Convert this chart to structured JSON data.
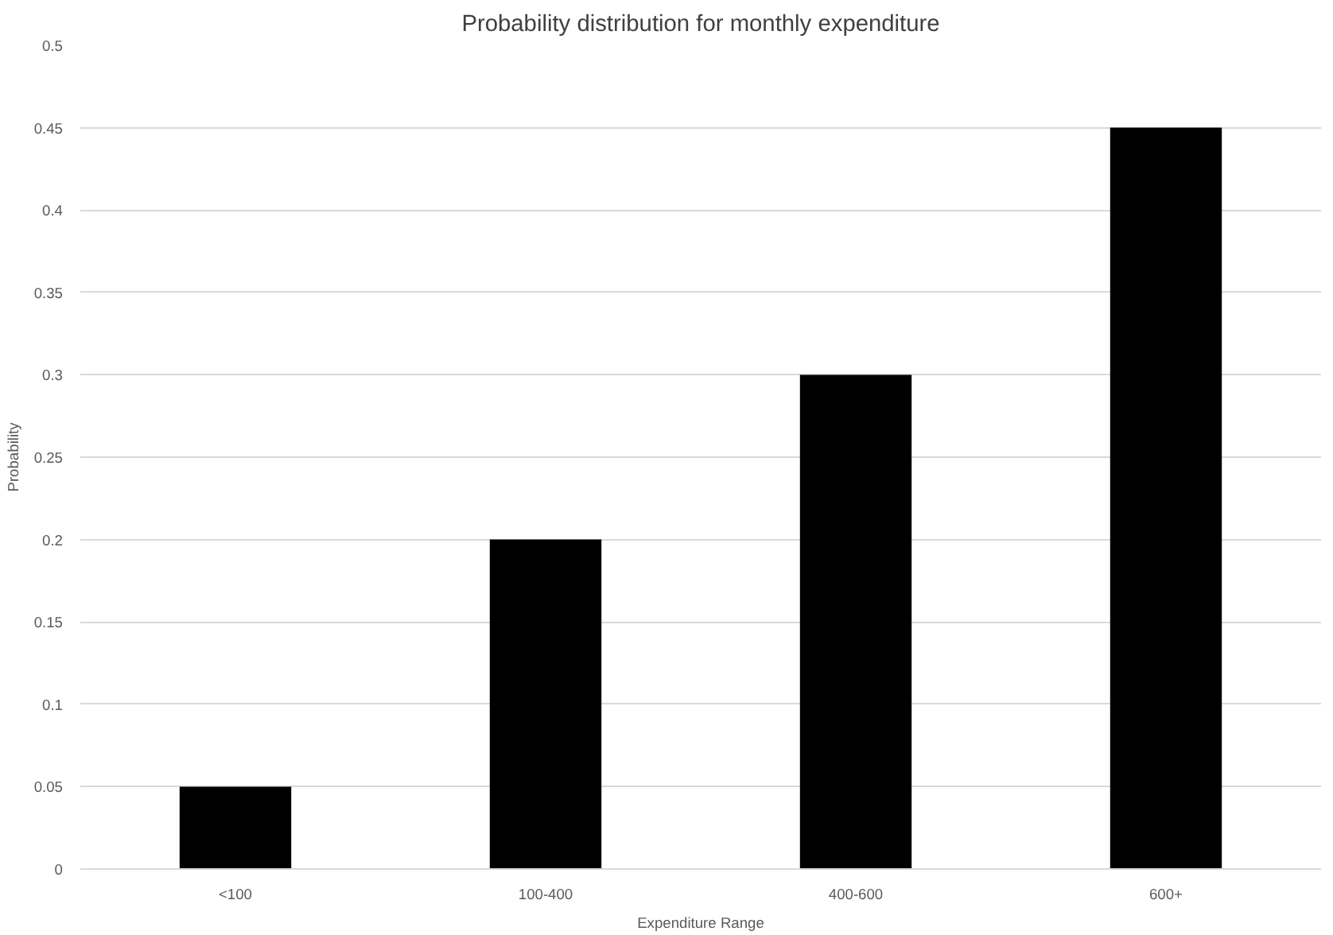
{
  "chart_data": {
    "type": "bar",
    "title": "Probability distribution for monthly expenditure",
    "xlabel": "Expenditure Range",
    "ylabel": "Probability",
    "categories": [
      "<100",
      "100-400",
      "400-600",
      "600+"
    ],
    "values": [
      0.05,
      0.2,
      0.3,
      0.45
    ],
    "color": "#000000",
    "ylim": [
      0,
      0.5
    ],
    "yticks": [
      0,
      0.05,
      0.1,
      0.15,
      0.2,
      0.25,
      0.3,
      0.35,
      0.4,
      0.45,
      0.5
    ],
    "grid": "y"
  }
}
